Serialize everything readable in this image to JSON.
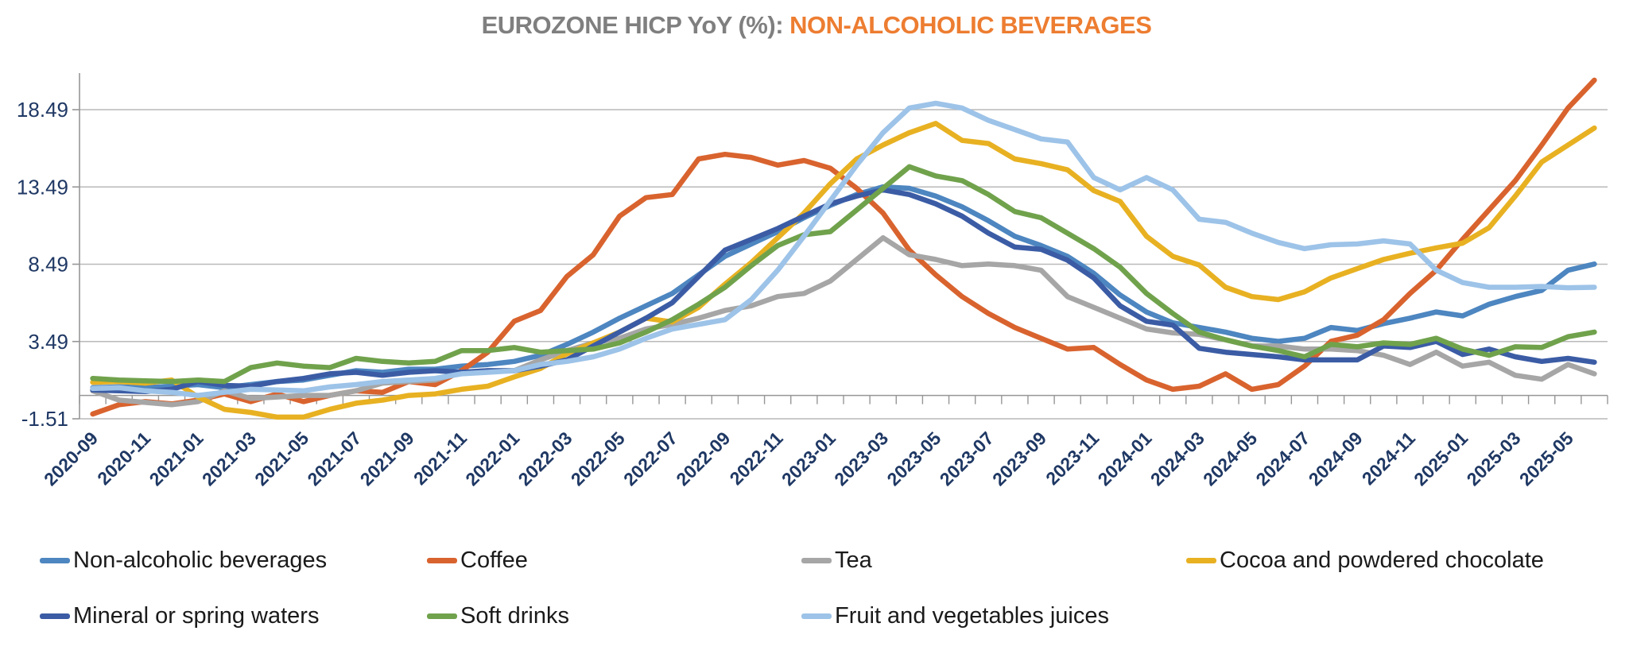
{
  "title": {
    "prefix": "EUROZONE HICP YoY (%): ",
    "highlight": "NON-ALCOHOLIC BEVERAGES"
  },
  "colors": {
    "title_prefix": "#7f7f7f",
    "title_highlight": "#ed7d31",
    "axis_labels": "#1f3864",
    "gridline": "#b9b9b9",
    "axis_line": "#969696",
    "legend_text": "#1a1a1a"
  },
  "chart_data": {
    "type": "line",
    "title": "EUROZONE HICP YoY (%): NON-ALCOHOLIC BEVERAGES",
    "xlabel": "",
    "ylabel": "",
    "grid": true,
    "legend_position": "bottom",
    "ylim": [
      -1.51,
      21.49
    ],
    "y_gridlines": [
      -1.51,
      3.49,
      8.49,
      13.49,
      18.49
    ],
    "y_tick_labels": [
      "-1.51",
      "3.49",
      "8.49",
      "13.49",
      "18.49"
    ],
    "x": [
      "2020-09",
      "2020-10",
      "2020-11",
      "2020-12",
      "2021-01",
      "2021-02",
      "2021-03",
      "2021-04",
      "2021-05",
      "2021-06",
      "2021-07",
      "2021-08",
      "2021-09",
      "2021-10",
      "2021-11",
      "2021-12",
      "2022-01",
      "2022-02",
      "2022-03",
      "2022-04",
      "2022-05",
      "2022-06",
      "2022-07",
      "2022-08",
      "2022-09",
      "2022-10",
      "2022-11",
      "2022-12",
      "2023-01",
      "2023-02",
      "2023-03",
      "2023-04",
      "2023-05",
      "2023-06",
      "2023-07",
      "2023-08",
      "2023-09",
      "2023-10",
      "2023-11",
      "2023-12",
      "2024-01",
      "2024-02",
      "2024-03",
      "2024-04",
      "2024-05",
      "2024-06",
      "2024-07",
      "2024-08",
      "2024-09",
      "2024-10",
      "2024-11",
      "2024-12",
      "2025-01",
      "2025-02",
      "2025-03",
      "2025-04",
      "2025-05",
      "2025-06"
    ],
    "x_tick_labels": [
      "2020-09",
      "2020-11",
      "2021-01",
      "2021-03",
      "2021-05",
      "2021-07",
      "2021-09",
      "2021-11",
      "2022-01",
      "2022-03",
      "2022-05",
      "2022-07",
      "2022-09",
      "2022-11",
      "2023-01",
      "2023-03",
      "2023-05",
      "2023-07",
      "2023-09",
      "2023-11",
      "2024-01",
      "2024-03",
      "2024-05",
      "2024-07",
      "2024-09",
      "2024-11",
      "2025-01",
      "2025-03",
      "2025-05"
    ],
    "series": [
      {
        "name": "Non-alcoholic beverages",
        "color": "#4d86c0",
        "values": [
          0.5,
          0.55,
          0.5,
          0.6,
          0.7,
          0.5,
          0.7,
          0.9,
          1.0,
          1.3,
          1.6,
          1.5,
          1.7,
          1.7,
          1.9,
          2.0,
          2.2,
          2.6,
          3.3,
          4.1,
          5.0,
          5.8,
          6.6,
          7.8,
          9.0,
          9.8,
          10.6,
          11.5,
          12.3,
          13.0,
          13.5,
          13.4,
          12.9,
          12.2,
          11.3,
          10.3,
          9.7,
          9.0,
          7.9,
          6.5,
          5.4,
          4.7,
          4.4,
          4.1,
          3.7,
          3.5,
          3.7,
          4.4,
          4.2,
          4.65,
          5.0,
          5.4,
          5.15,
          5.9,
          6.4,
          6.8,
          8.1,
          8.5
        ]
      },
      {
        "name": "Coffee",
        "color": "#d9632e",
        "values": [
          -1.2,
          -0.6,
          -0.4,
          -0.55,
          -0.3,
          0.1,
          -0.4,
          0.1,
          -0.4,
          0.0,
          0.3,
          0.2,
          0.9,
          0.7,
          1.6,
          2.8,
          4.8,
          5.5,
          7.7,
          9.1,
          11.6,
          12.8,
          13.0,
          15.3,
          15.6,
          15.4,
          14.9,
          15.2,
          14.7,
          13.4,
          11.8,
          9.4,
          7.8,
          6.4,
          5.3,
          4.4,
          3.7,
          3.0,
          3.1,
          2.0,
          1.0,
          0.4,
          0.6,
          1.4,
          0.4,
          0.7,
          1.9,
          3.5,
          3.9,
          4.9,
          6.6,
          8.1,
          10.1,
          12.0,
          13.9,
          16.2,
          18.6,
          20.4
        ]
      },
      {
        "name": "Tea",
        "color": "#a6a6a6",
        "values": [
          0.3,
          -0.3,
          -0.45,
          -0.6,
          -0.4,
          0.3,
          -0.2,
          -0.1,
          0.0,
          0.0,
          0.3,
          0.8,
          0.9,
          1.0,
          1.5,
          1.6,
          1.6,
          2.3,
          2.9,
          3.4,
          3.7,
          4.3,
          4.6,
          5.0,
          5.5,
          5.8,
          6.4,
          6.6,
          7.4,
          8.8,
          10.2,
          9.1,
          8.8,
          8.4,
          8.5,
          8.4,
          8.1,
          6.4,
          5.7,
          5.0,
          4.3,
          4.05,
          3.95,
          3.6,
          3.2,
          3.2,
          3.0,
          3.0,
          2.9,
          2.6,
          2.0,
          2.8,
          1.9,
          2.15,
          1.3,
          1.05,
          2.0,
          1.4
        ]
      },
      {
        "name": "Cocoa and powdered chocolate",
        "color": "#e8b122",
        "values": [
          0.85,
          0.9,
          0.8,
          1.0,
          -0.1,
          -0.9,
          -1.1,
          -1.4,
          -1.4,
          -0.9,
          -0.5,
          -0.3,
          0.0,
          0.1,
          0.4,
          0.6,
          1.2,
          1.75,
          2.7,
          3.4,
          4.1,
          5.0,
          4.75,
          5.7,
          7.2,
          8.6,
          10.2,
          11.8,
          13.7,
          15.3,
          16.2,
          17.0,
          17.6,
          16.5,
          16.3,
          15.3,
          15.0,
          14.6,
          13.25,
          12.55,
          10.3,
          9.0,
          8.44,
          7.0,
          6.4,
          6.2,
          6.7,
          7.6,
          8.2,
          8.8,
          9.2,
          9.55,
          9.85,
          10.85,
          12.9,
          15.1,
          16.2,
          17.3
        ]
      },
      {
        "name": "Mineral or spring waters",
        "color": "#3b5ca5",
        "values": [
          0.35,
          0.3,
          0.25,
          0.4,
          0.9,
          0.65,
          0.6,
          0.9,
          1.1,
          1.4,
          1.5,
          1.3,
          1.5,
          1.6,
          1.5,
          1.6,
          1.6,
          1.9,
          2.3,
          3.2,
          4.1,
          5.0,
          6.0,
          7.7,
          9.4,
          10.1,
          10.8,
          11.6,
          12.4,
          12.9,
          13.3,
          13.0,
          12.4,
          11.6,
          10.5,
          9.6,
          9.45,
          8.75,
          7.6,
          5.8,
          4.8,
          4.55,
          3.05,
          2.8,
          2.65,
          2.5,
          2.3,
          2.3,
          2.3,
          3.2,
          3.1,
          3.5,
          2.65,
          3.0,
          2.5,
          2.2,
          2.4,
          2.15
        ]
      },
      {
        "name": "Soft drinks",
        "color": "#70a24c",
        "values": [
          1.1,
          1.0,
          0.95,
          0.9,
          1.0,
          0.9,
          1.8,
          2.1,
          1.9,
          1.8,
          2.4,
          2.2,
          2.1,
          2.2,
          2.9,
          2.9,
          3.1,
          2.8,
          2.9,
          3.0,
          3.4,
          4.1,
          4.9,
          5.9,
          7.0,
          8.4,
          9.7,
          10.4,
          10.6,
          12.0,
          13.4,
          14.8,
          14.2,
          13.9,
          13.0,
          11.9,
          11.5,
          10.5,
          9.5,
          8.3,
          6.6,
          5.3,
          4.1,
          3.6,
          3.2,
          2.9,
          2.5,
          3.3,
          3.15,
          3.4,
          3.3,
          3.7,
          3.0,
          2.6,
          3.15,
          3.1,
          3.8,
          4.1
        ]
      },
      {
        "name": "Fruit and vegetables juices",
        "color": "#9dc3e8",
        "values": [
          0.45,
          0.5,
          0.3,
          0.2,
          0.0,
          0.2,
          0.4,
          0.35,
          0.3,
          0.55,
          0.7,
          0.9,
          1.0,
          1.1,
          1.4,
          1.5,
          1.6,
          2.0,
          2.2,
          2.5,
          3.0,
          3.7,
          4.3,
          4.6,
          4.9,
          6.2,
          8.1,
          10.3,
          12.6,
          14.9,
          17.0,
          18.6,
          18.9,
          18.6,
          17.8,
          17.2,
          16.6,
          16.4,
          14.1,
          13.3,
          14.1,
          13.3,
          11.4,
          11.2,
          10.5,
          9.9,
          9.5,
          9.75,
          9.8,
          10.0,
          9.8,
          8.1,
          7.3,
          7.0,
          7.0,
          7.05,
          6.97,
          7.0
        ]
      }
    ]
  }
}
